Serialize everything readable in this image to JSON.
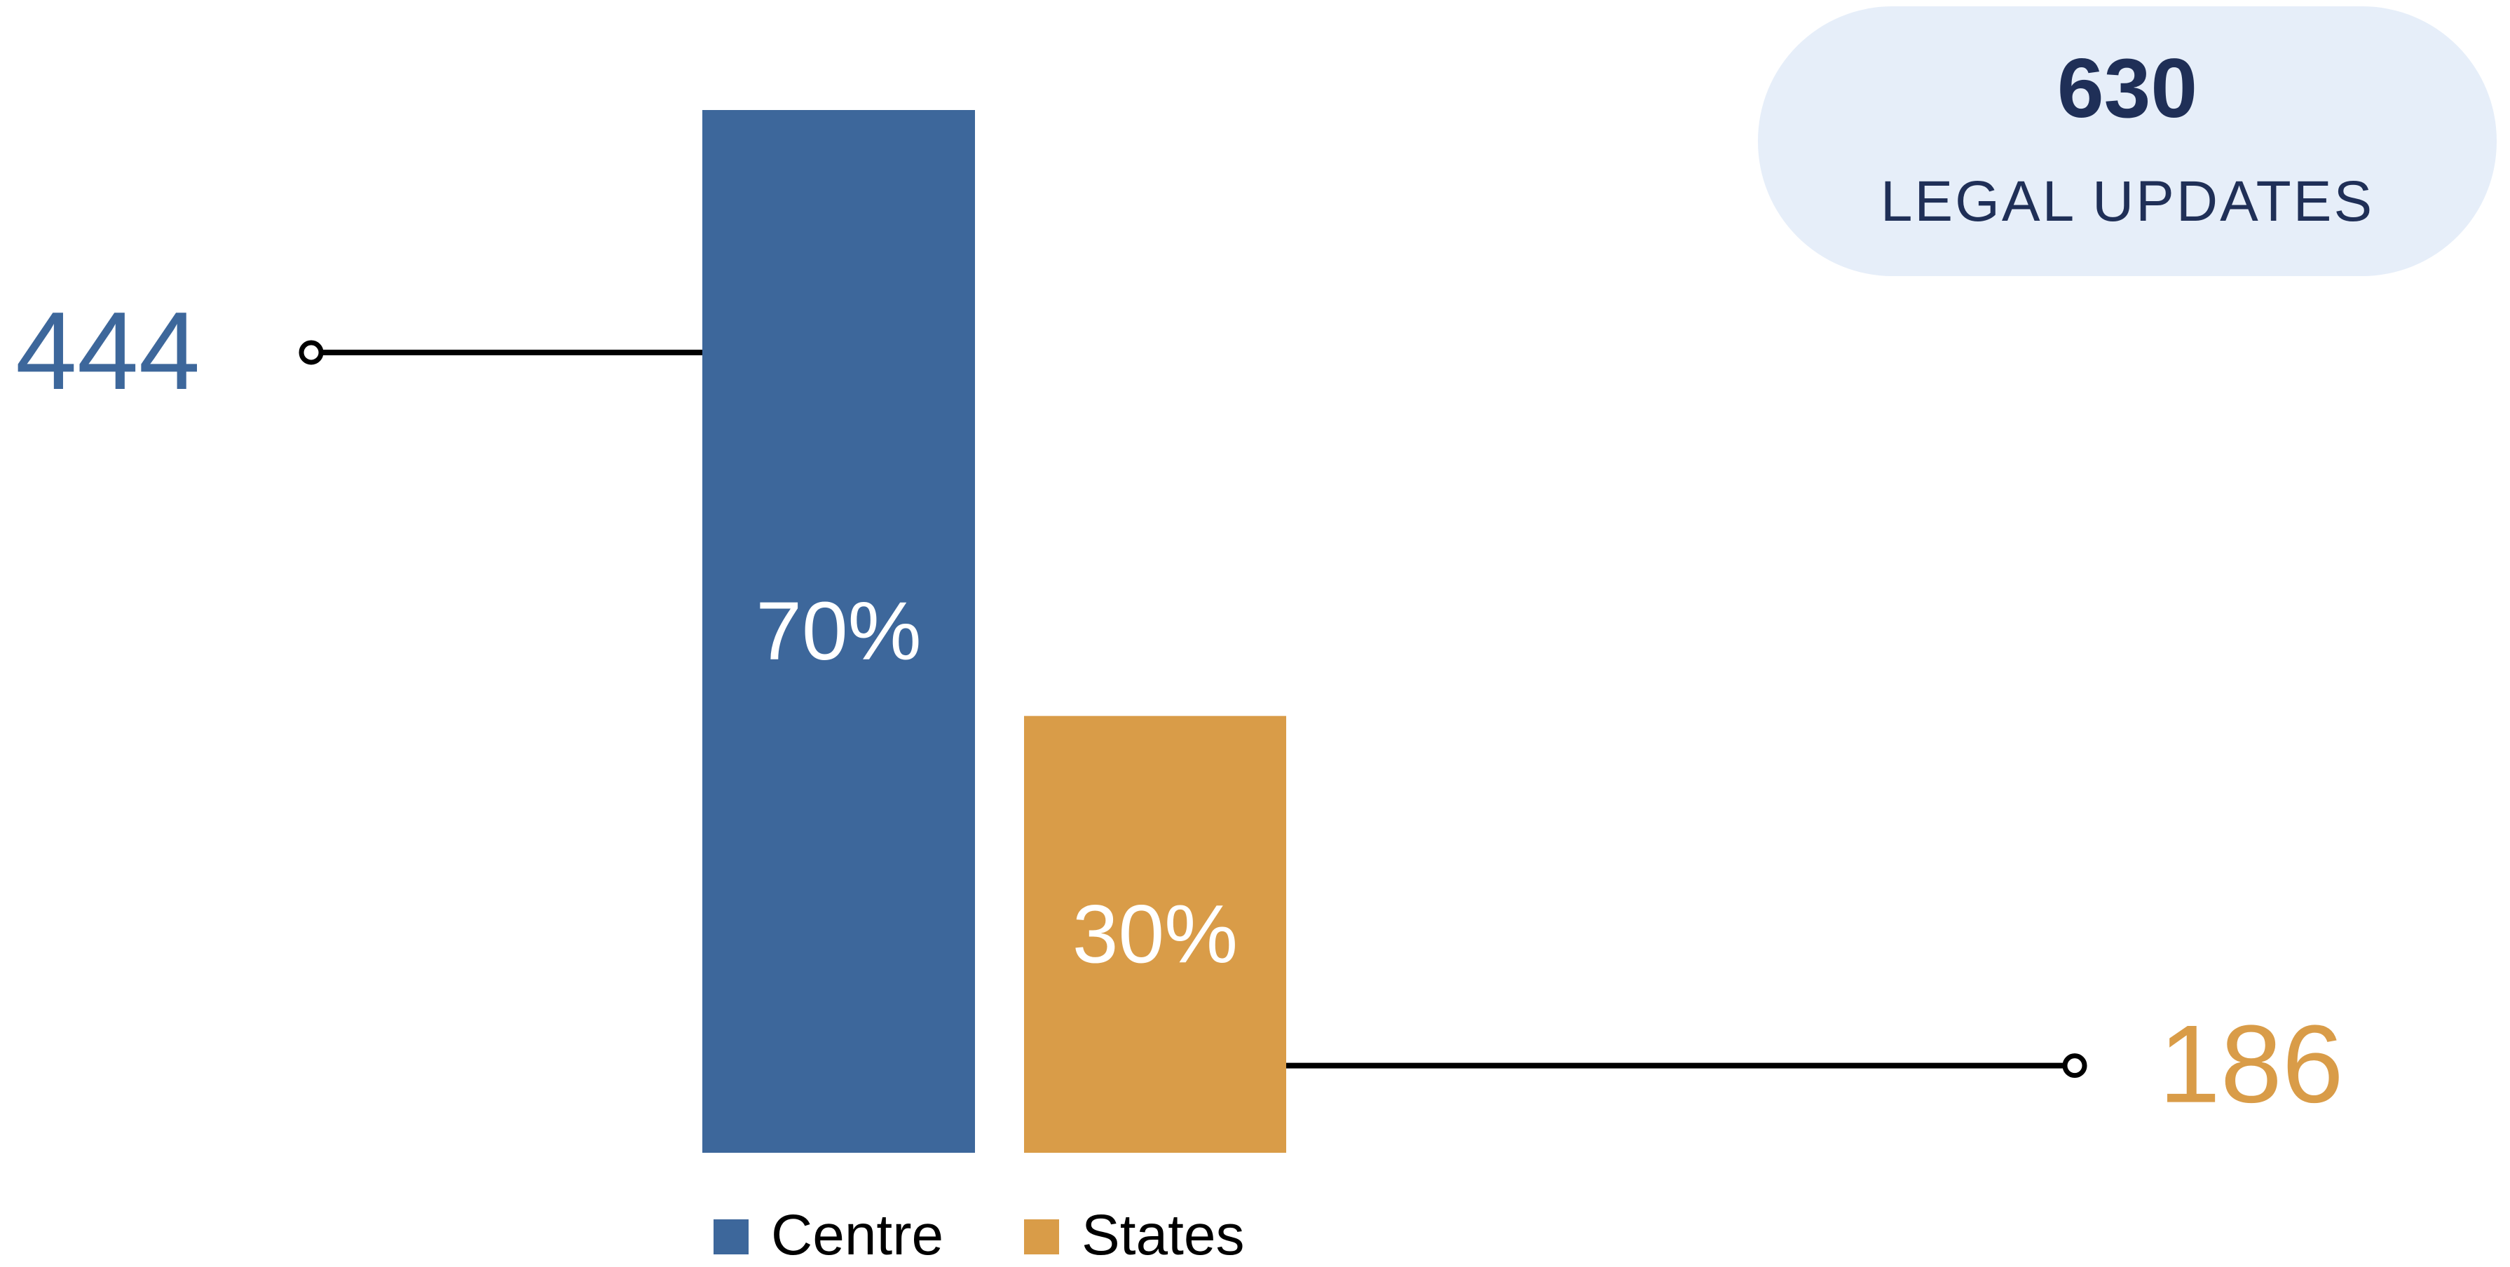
{
  "chart_data": {
    "type": "bar",
    "categories": [
      "Centre",
      "States"
    ],
    "values": [
      444,
      186
    ],
    "percent_labels": [
      "70%",
      "30%"
    ],
    "callout_values": [
      "444",
      "186"
    ],
    "colors": [
      "#3d679b",
      "#d99c48"
    ],
    "legend": [
      "Centre",
      "States"
    ],
    "legend_position": "bottom",
    "ylim": [
      0,
      444
    ],
    "grid": false
  },
  "summary": {
    "total": "630",
    "label": "LEGAL UPDATES"
  }
}
